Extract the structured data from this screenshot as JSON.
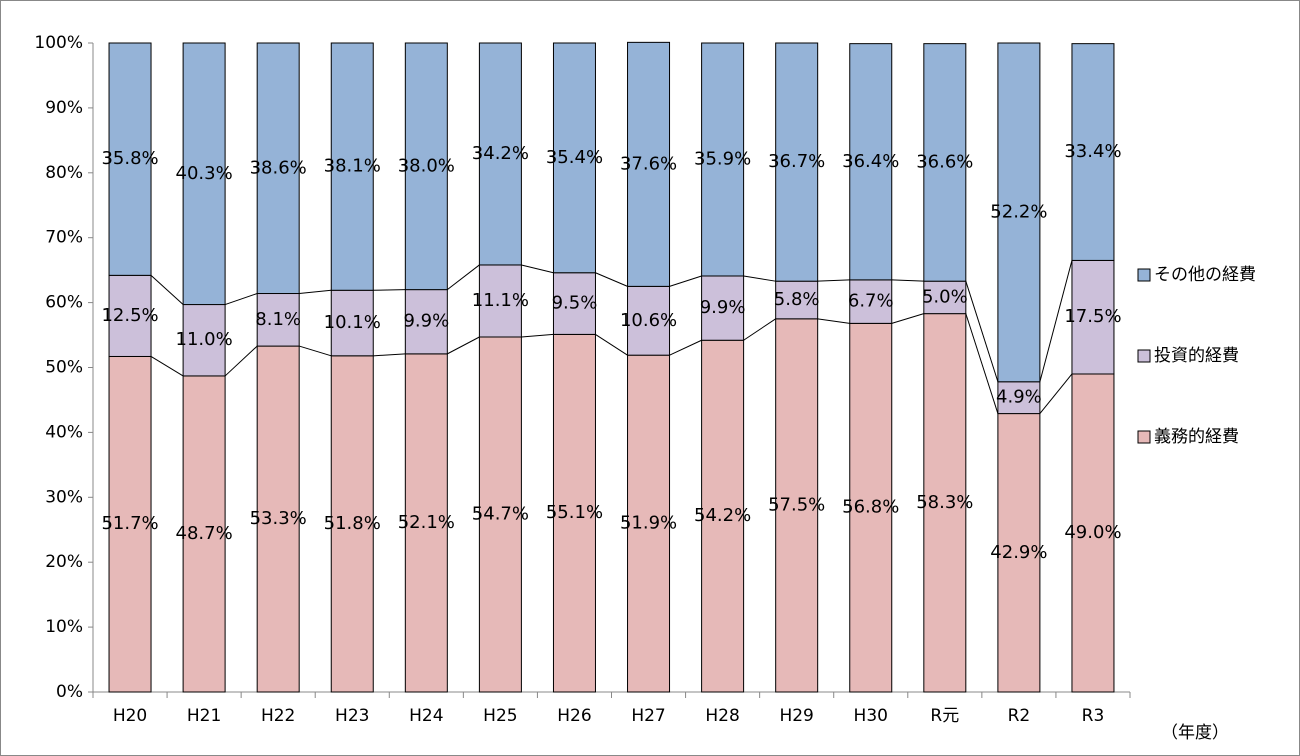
{
  "chart_data": {
    "type": "stacked_bar",
    "categories": [
      "H20",
      "H21",
      "H22",
      "H23",
      "H24",
      "H25",
      "H26",
      "H27",
      "H28",
      "H29",
      "H30",
      "R元",
      "R2",
      "R3"
    ],
    "series": [
      {
        "name": "義務的経費",
        "color": "#e6b9b8",
        "values": [
          51.7,
          48.7,
          53.3,
          51.8,
          52.1,
          54.7,
          55.1,
          51.9,
          54.2,
          57.5,
          56.8,
          58.3,
          42.9,
          49.0
        ],
        "value_labels": [
          "51.7%",
          "48.7%",
          "53.3%",
          "51.8%",
          "52.1%",
          "54.7%",
          "55.1%",
          "51.9%",
          "54.2%",
          "57.5%",
          "56.8%",
          "58.3%",
          "42.9%",
          "49.0%"
        ]
      },
      {
        "name": "投資的経費",
        "color": "#ccc0da",
        "values": [
          12.5,
          11.0,
          8.1,
          10.1,
          9.9,
          11.1,
          9.5,
          10.6,
          9.9,
          5.8,
          6.7,
          5.0,
          4.9,
          17.5
        ],
        "value_labels": [
          "12.5%",
          "11.0%",
          "8.1%",
          "10.1%",
          "9.9%",
          "11.1%",
          "9.5%",
          "10.6%",
          "9.9%",
          "5.8%",
          "6.7%",
          "5.0%",
          "4.9%",
          "17.5%"
        ]
      },
      {
        "name": "その他の経費",
        "color": "#95b3d7",
        "values": [
          35.8,
          40.3,
          38.6,
          38.1,
          38.0,
          34.2,
          35.4,
          37.6,
          35.9,
          36.7,
          36.4,
          36.6,
          52.2,
          33.4
        ],
        "value_labels": [
          "35.8%",
          "40.3%",
          "38.6%",
          "38.1%",
          "38.0%",
          "34.2%",
          "35.4%",
          "37.6%",
          "35.9%",
          "36.7%",
          "36.4%",
          "36.6%",
          "52.2%",
          "33.4%"
        ]
      }
    ],
    "x_label": "（年度）",
    "ylim": [
      0,
      100
    ],
    "yticks": [
      {
        "value": 0,
        "label": "0%"
      },
      {
        "value": 10,
        "label": "10%"
      },
      {
        "value": 20,
        "label": "20%"
      },
      {
        "value": 30,
        "label": "30%"
      },
      {
        "value": 40,
        "label": "40%"
      },
      {
        "value": 50,
        "label": "50%"
      },
      {
        "value": 60,
        "label": "60%"
      },
      {
        "value": 70,
        "label": "70%"
      },
      {
        "value": 80,
        "label": "80%"
      },
      {
        "value": 90,
        "label": "90%"
      },
      {
        "value": 100,
        "label": "100%"
      }
    ],
    "legend": "right"
  }
}
